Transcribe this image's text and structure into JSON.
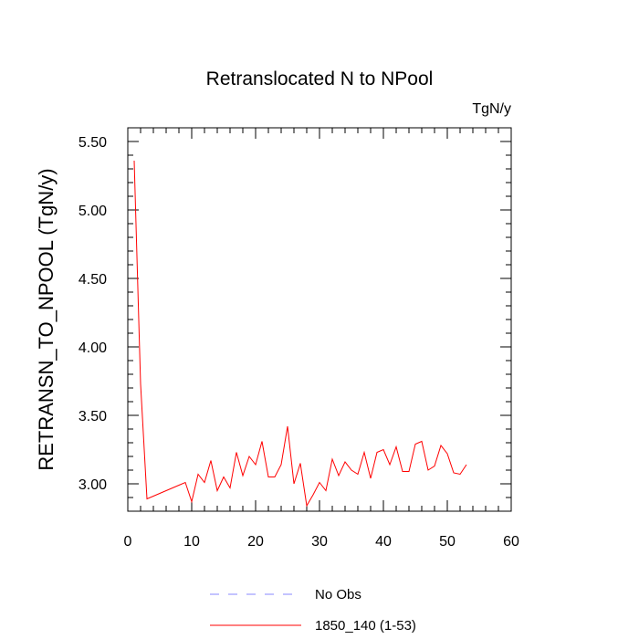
{
  "chart_data": {
    "type": "line",
    "title": "Retranslocated N to NPool",
    "units": "TgN/y",
    "xlabel": "",
    "ylabel": "RETRANSN_TO_NPOOL  (TgN/y)",
    "xlim": [
      0,
      60
    ],
    "ylim": [
      2.8,
      5.6
    ],
    "xticks": [
      0,
      10,
      20,
      30,
      40,
      50,
      60
    ],
    "xtick_labels": [
      "0",
      "10",
      "20",
      "30",
      "40",
      "50",
      "60"
    ],
    "yticks": [
      3.0,
      3.5,
      4.0,
      4.5,
      5.0,
      5.5
    ],
    "ytick_labels": [
      "3.00",
      "3.50",
      "4.00",
      "4.50",
      "5.00",
      "5.50"
    ],
    "grid": false,
    "legend_position": "bottom",
    "series": [
      {
        "name": "No Obs",
        "color": "#8888ff",
        "dash": "dashed",
        "x": [],
        "y": []
      },
      {
        "name": "1850_140 (1-53)",
        "color": "#ff0000",
        "dash": "solid",
        "x": [
          1,
          2,
          3,
          4,
          5,
          6,
          7,
          8,
          9,
          10,
          11,
          12,
          13,
          14,
          15,
          16,
          17,
          18,
          19,
          20,
          21,
          22,
          23,
          24,
          25,
          26,
          27,
          28,
          29,
          30,
          31,
          32,
          33,
          34,
          35,
          36,
          37,
          38,
          39,
          40,
          41,
          42,
          43,
          44,
          45,
          46,
          47,
          48,
          49,
          50,
          51,
          52,
          53
        ],
        "y": [
          5.36,
          3.73,
          2.89,
          2.91,
          2.93,
          2.95,
          2.97,
          2.99,
          3.01,
          2.87,
          3.07,
          3.01,
          3.17,
          2.95,
          3.05,
          2.97,
          3.23,
          3.06,
          3.2,
          3.14,
          3.31,
          3.05,
          3.05,
          3.14,
          3.42,
          3.0,
          3.15,
          2.84,
          2.92,
          3.01,
          2.95,
          3.18,
          3.06,
          3.16,
          3.1,
          3.07,
          3.23,
          3.04,
          3.23,
          3.25,
          3.14,
          3.27,
          3.09,
          3.09,
          3.29,
          3.31,
          3.1,
          3.13,
          3.28,
          3.22,
          3.08,
          3.07,
          3.14
        ]
      }
    ]
  }
}
